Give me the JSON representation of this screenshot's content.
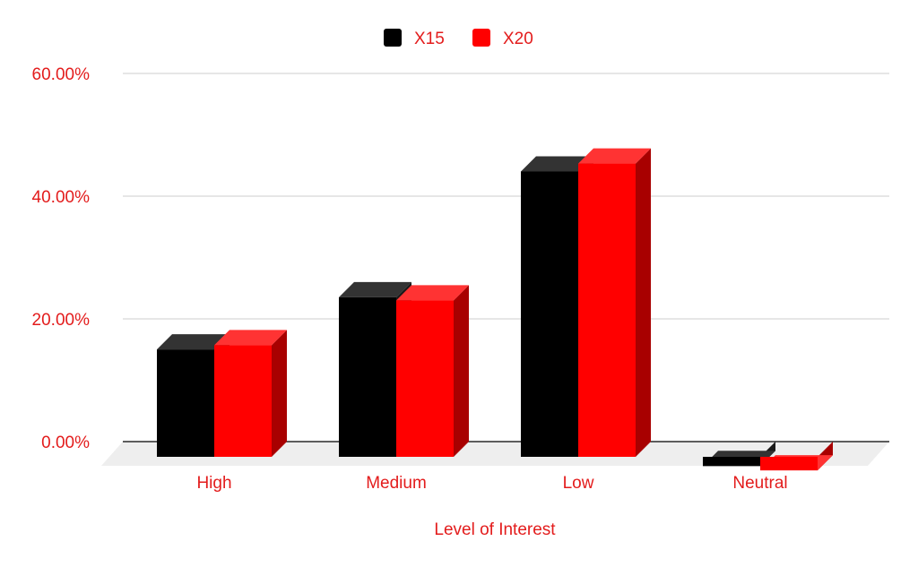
{
  "chart_data": {
    "type": "bar",
    "categories": [
      "High",
      "Medium",
      "Low",
      "Neutral"
    ],
    "series": [
      {
        "name": "X15",
        "values": [
          17.5,
          26.0,
          46.5,
          -1.5
        ],
        "color": "#000000"
      },
      {
        "name": "X20",
        "values": [
          18.2,
          25.5,
          47.8,
          -2.2
        ],
        "color": "#ff0000"
      }
    ],
    "xlabel": "Level of Interest",
    "ylabel": "",
    "ylim": [
      0,
      60
    ],
    "yticks": [
      "0.00%",
      "20.00%",
      "40.00%",
      "60.00%"
    ],
    "ytick_values": [
      0,
      20,
      40,
      60
    ],
    "grid": true,
    "legend_position": "top-center",
    "style": "3d-column",
    "label_color": "#e31c1c",
    "grid_color": "#cccccc"
  }
}
